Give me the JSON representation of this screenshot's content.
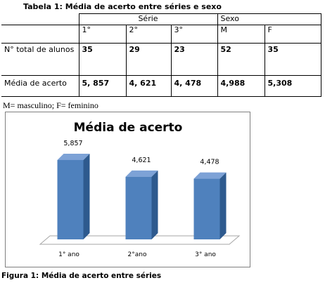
{
  "table": {
    "caption": "Tabela 1: Média de acerto entre séries e sexo",
    "group_headers": {
      "serie": "Série",
      "sexo": "Sexo"
    },
    "sub_headers": [
      "1°",
      "2°",
      "3°",
      "M",
      "F"
    ],
    "rows": [
      {
        "label": "N° total de alunos",
        "values": [
          "35",
          "29",
          "23",
          "52",
          "35"
        ]
      },
      {
        "label": "Média de acerto",
        "values": [
          "5, 857",
          "4, 621",
          "4, 478",
          "4,988",
          "5,308"
        ]
      }
    ]
  },
  "note": "M= masculino; F= feminino",
  "chart_data": {
    "type": "bar",
    "title": "Média de acerto",
    "categories": [
      "1° ano",
      "2°ano",
      "3° ano"
    ],
    "values": [
      5.857,
      4.621,
      4.478
    ],
    "data_labels": [
      "5,857",
      "4,621",
      "4,478"
    ],
    "ylim": [
      0,
      7
    ],
    "bar_color": "#4f81bd",
    "three_d": true,
    "legend": "none",
    "grid": false
  },
  "figure_caption": "Figura 1: Média de acerto entre séries"
}
